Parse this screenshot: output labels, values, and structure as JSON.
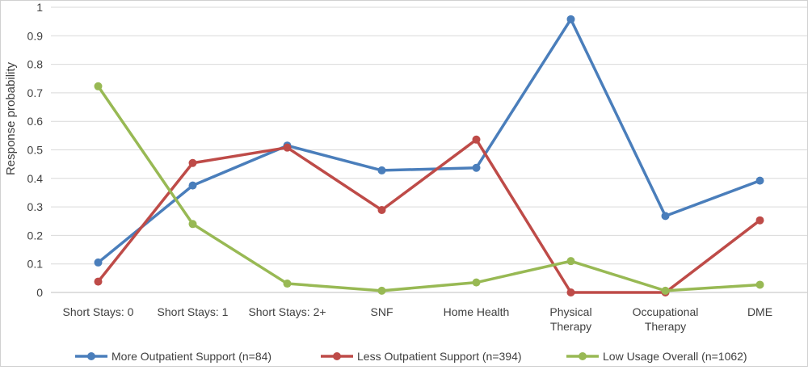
{
  "chart_data": {
    "type": "line",
    "title": "",
    "xlabel": "",
    "ylabel": "Response probability",
    "ylim": [
      0,
      1
    ],
    "yticks": [
      "0",
      "0.1",
      "0.2",
      "0.3",
      "0.4",
      "0.5",
      "0.6",
      "0.7",
      "0.8",
      "0.9",
      "1"
    ],
    "grid": true,
    "legend": "bottom",
    "categories": [
      [
        "Short Stays: 0"
      ],
      [
        "Short Stays: 1"
      ],
      [
        "Short Stays: 2+"
      ],
      [
        "SNF"
      ],
      [
        "Home Health"
      ],
      [
        "Physical",
        "Therapy"
      ],
      [
        "Occupational",
        "Therapy"
      ],
      [
        "DME"
      ]
    ],
    "series": [
      {
        "name": "More Outpatient Support (n=84)",
        "color": "#4a7ebb",
        "values": [
          0.105,
          0.375,
          0.515,
          0.428,
          0.437,
          0.958,
          0.268,
          0.392
        ]
      },
      {
        "name": "Less Outpatient Support  (n=394)",
        "color": "#be4b48",
        "values": [
          0.038,
          0.454,
          0.508,
          0.289,
          0.536,
          0.0,
          0.0,
          0.253
        ]
      },
      {
        "name": "Low Usage Overall (n=1062)",
        "color": "#98b954",
        "values": [
          0.723,
          0.24,
          0.031,
          0.006,
          0.035,
          0.11,
          0.006,
          0.027
        ]
      }
    ]
  }
}
